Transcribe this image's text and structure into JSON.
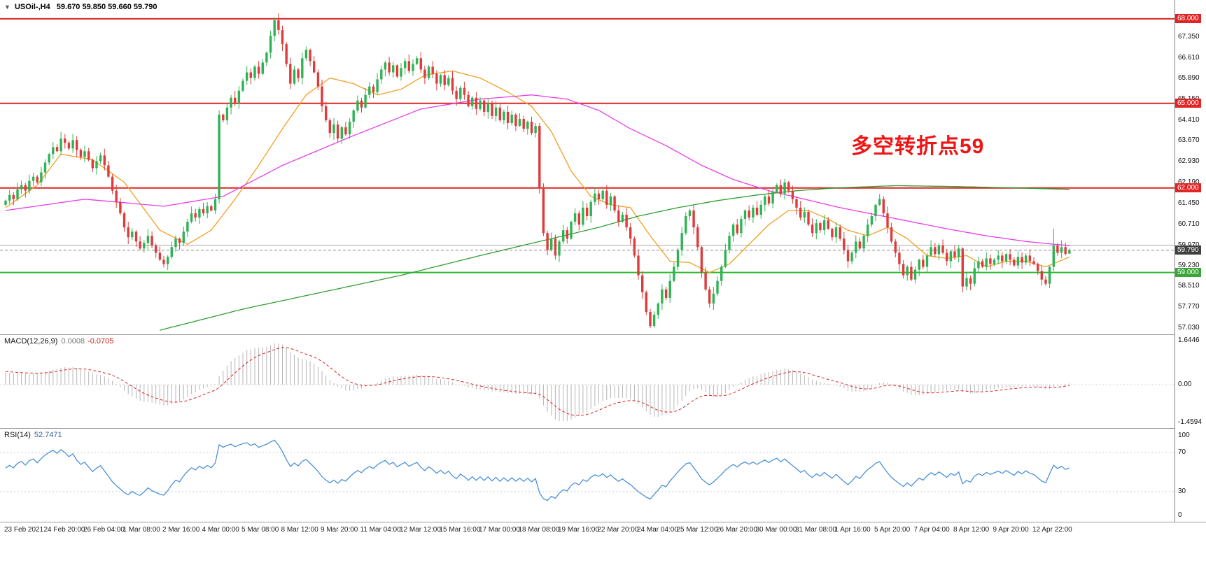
{
  "header": {
    "symbol": "USOil-,H4",
    "ohlc": "59.670 59.850 59.660 59.790",
    "collapse_icon": "▼"
  },
  "annotation": {
    "text": "多空转折点59",
    "color": "#f01414"
  },
  "axis": {
    "price_ticks": [
      {
        "label": "67.350",
        "value": 67.35
      },
      {
        "label": "66.610",
        "value": 66.61
      },
      {
        "label": "65.890",
        "value": 65.89
      },
      {
        "label": "65.150",
        "value": 65.15
      },
      {
        "label": "64.410",
        "value": 64.41
      },
      {
        "label": "63.670",
        "value": 63.67
      },
      {
        "label": "62.930",
        "value": 62.93
      },
      {
        "label": "62.190",
        "value": 62.19
      },
      {
        "label": "61.450",
        "value": 61.45
      },
      {
        "label": "60.710",
        "value": 60.71
      },
      {
        "label": "59.970",
        "value": 59.97
      },
      {
        "label": "59.230",
        "value": 59.23
      },
      {
        "label": "58.510",
        "value": 58.51
      },
      {
        "label": "57.770",
        "value": 57.77
      },
      {
        "label": "57.030",
        "value": 57.03
      }
    ],
    "current_price": {
      "label": "59.790",
      "value": 59.79
    }
  },
  "indicators": {
    "macd": {
      "label": "MACD(12,26,9)",
      "value_main": "0.0008",
      "value_signal": "-0.0705",
      "axis": [
        "1.6446",
        "0.00",
        "-1.4594"
      ],
      "fast": 12,
      "slow": 26,
      "signal": 9
    },
    "rsi": {
      "label": "RSI(14)",
      "value": "52.7471",
      "axis": [
        "100",
        "70",
        "30",
        "0"
      ],
      "period": 14,
      "levels": [
        70,
        30
      ]
    }
  },
  "colors": {
    "up": "#2eb353",
    "down": "#e03a3a",
    "macd_hist": "#b5b5b5",
    "macd_signal": "#dd2222",
    "rsi_line": "#4a90d8",
    "rsi_level": "#c8c8c8",
    "current_badge": "#3f3f3f",
    "current_line": "#888888",
    "axis_line": "#808080",
    "separator": "#9a9a9a"
  },
  "chart_data": {
    "type": "candlestick",
    "symbol": "USOil-",
    "timeframe": "H4",
    "title": "USOil-,H4 59.670 59.850 59.660 59.790",
    "ylim": [
      56.93,
      68.32
    ],
    "closes": [
      61.55,
      61.75,
      61.6,
      61.95,
      62.1,
      61.9,
      62.25,
      62.4,
      62.2,
      62.55,
      62.9,
      63.2,
      63.45,
      63.3,
      63.75,
      63.6,
      63.4,
      63.7,
      63.35,
      63.1,
      63.3,
      63.0,
      62.7,
      62.95,
      63.15,
      62.8,
      62.4,
      61.9,
      61.5,
      61.1,
      60.6,
      60.25,
      60.45,
      60.1,
      59.85,
      60.05,
      60.3,
      59.95,
      59.7,
      59.45,
      59.3,
      59.55,
      59.9,
      60.2,
      60.05,
      60.45,
      60.8,
      61.1,
      60.95,
      61.25,
      61.1,
      61.35,
      61.2,
      61.6,
      64.6,
      64.4,
      64.85,
      65.2,
      65.0,
      65.45,
      65.8,
      66.1,
      65.9,
      66.3,
      66.05,
      66.45,
      66.8,
      67.4,
      67.95,
      67.6,
      67.1,
      66.4,
      65.7,
      66.2,
      65.9,
      66.6,
      66.9,
      66.5,
      66.1,
      65.6,
      64.9,
      64.4,
      63.95,
      64.25,
      63.75,
      64.15,
      63.9,
      64.35,
      64.75,
      65.1,
      64.85,
      65.3,
      65.6,
      65.4,
      65.85,
      66.2,
      66.45,
      66.1,
      66.35,
      65.95,
      66.25,
      66.5,
      66.15,
      66.4,
      66.6,
      66.2,
      65.9,
      66.3,
      66.05,
      65.7,
      66.0,
      65.65,
      65.9,
      65.45,
      65.15,
      65.55,
      65.3,
      64.9,
      65.2,
      64.8,
      65.1,
      64.7,
      65.0,
      64.55,
      64.85,
      64.4,
      64.7,
      64.3,
      64.6,
      64.2,
      64.45,
      64.1,
      64.35,
      63.95,
      64.2,
      62.0,
      60.4,
      59.8,
      60.2,
      59.6,
      60.1,
      60.5,
      60.2,
      60.8,
      61.1,
      60.7,
      61.3,
      61.0,
      61.5,
      61.8,
      61.6,
      61.9,
      61.4,
      61.7,
      61.2,
      60.8,
      61.05,
      60.6,
      60.2,
      59.6,
      58.9,
      58.3,
      57.6,
      57.1,
      57.5,
      57.9,
      58.4,
      58.1,
      58.7,
      59.2,
      59.8,
      60.4,
      61.0,
      61.2,
      60.6,
      59.9,
      59.0,
      58.4,
      57.9,
      58.25,
      58.7,
      59.2,
      59.8,
      60.3,
      60.7,
      60.4,
      60.9,
      61.2,
      60.95,
      61.3,
      61.05,
      61.4,
      61.7,
      61.45,
      61.85,
      62.1,
      61.8,
      62.2,
      61.9,
      61.6,
      61.3,
      60.95,
      61.15,
      60.7,
      60.4,
      60.75,
      60.5,
      60.85,
      60.55,
      60.25,
      60.6,
      60.2,
      59.8,
      59.4,
      59.7,
      60.1,
      59.85,
      60.3,
      60.7,
      61.0,
      61.4,
      61.6,
      61.1,
      60.6,
      60.1,
      59.7,
      59.3,
      58.9,
      59.2,
      58.75,
      59.1,
      59.45,
      59.2,
      59.6,
      59.9,
      59.65,
      59.95,
      59.7,
      59.4,
      59.75,
      59.55,
      59.85,
      58.5,
      58.8,
      58.6,
      59.15,
      59.4,
      59.2,
      59.5,
      59.3,
      59.45,
      59.6,
      59.4,
      59.65,
      59.45,
      59.25,
      59.55,
      59.35,
      59.6,
      59.4,
      59.3,
      59.05,
      58.75,
      58.6,
      59.2,
      59.95,
      59.7,
      59.9,
      59.66,
      59.79
    ],
    "overrides": {
      "54": [
        61.6,
        64.75,
        61.45,
        64.6
      ],
      "68": [
        67.4,
        68.05,
        67.2,
        67.95
      ],
      "135": [
        64.2,
        64.3,
        61.8,
        62.0
      ],
      "163": [
        57.6,
        57.7,
        57.03,
        57.1
      ],
      "242": [
        59.85,
        59.9,
        58.3,
        58.5
      ],
      "265": [
        59.2,
        60.55,
        59.05,
        59.95
      ],
      "269": [
        59.67,
        59.85,
        59.66,
        59.79
      ]
    },
    "hlines": [
      {
        "price": 68.0,
        "color": "#e02525",
        "width": 2,
        "badge": "68.000",
        "badge_color": "#e02525"
      },
      {
        "price": 65.0,
        "color": "#e02525",
        "width": 2,
        "badge": "65.000",
        "badge_color": "#e02525"
      },
      {
        "price": 62.0,
        "color": "#e02525",
        "width": 2,
        "badge": "62.000",
        "badge_color": "#e02525"
      },
      {
        "price": 59.0,
        "color": "#2eb82e",
        "width": 2,
        "badge": "59.000",
        "badge_color": "#3aa63a"
      },
      {
        "price": 59.97,
        "color": "#aaaaaa",
        "width": 1,
        "badge": null,
        "badge_color": null
      }
    ],
    "current_price": {
      "price": 59.79,
      "label": "59.790"
    },
    "moving_averages": [
      {
        "name": "ma-fast-orange",
        "color": "#f0a020",
        "width": 1.3,
        "anchors": [
          [
            0,
            61.3
          ],
          [
            8,
            62.1
          ],
          [
            14,
            63.2
          ],
          [
            22,
            63.0
          ],
          [
            30,
            62.2
          ],
          [
            39,
            60.5
          ],
          [
            46,
            60.0
          ],
          [
            52,
            60.5
          ],
          [
            58,
            61.6
          ],
          [
            64,
            62.8
          ],
          [
            70,
            64.1
          ],
          [
            76,
            65.3
          ],
          [
            82,
            65.9
          ],
          [
            88,
            65.7
          ],
          [
            94,
            65.3
          ],
          [
            100,
            65.5
          ],
          [
            106,
            66.0
          ],
          [
            113,
            66.15
          ],
          [
            120,
            65.9
          ],
          [
            127,
            65.4
          ],
          [
            133,
            64.9
          ],
          [
            138,
            64.0
          ],
          [
            143,
            62.6
          ],
          [
            148,
            61.7
          ],
          [
            153,
            61.4
          ],
          [
            158,
            61.3
          ],
          [
            163,
            60.3
          ],
          [
            168,
            59.4
          ],
          [
            173,
            59.35
          ],
          [
            178,
            59.0
          ],
          [
            183,
            59.3
          ],
          [
            188,
            60.0
          ],
          [
            193,
            60.7
          ],
          [
            198,
            61.2
          ],
          [
            203,
            61.2
          ],
          [
            208,
            60.9
          ],
          [
            213,
            60.5
          ],
          [
            218,
            60.3
          ],
          [
            223,
            60.6
          ],
          [
            228,
            60.2
          ],
          [
            233,
            59.6
          ],
          [
            238,
            59.5
          ],
          [
            243,
            59.6
          ],
          [
            248,
            59.2
          ],
          [
            253,
            59.4
          ],
          [
            258,
            59.4
          ],
          [
            263,
            59.2
          ],
          [
            269,
            59.55
          ]
        ]
      },
      {
        "name": "ma-mid-magenta",
        "color": "#e83ee8",
        "width": 1.3,
        "anchors": [
          [
            0,
            61.2
          ],
          [
            20,
            61.6
          ],
          [
            40,
            61.35
          ],
          [
            55,
            61.7
          ],
          [
            70,
            62.8
          ],
          [
            87,
            63.8
          ],
          [
            105,
            64.8
          ],
          [
            120,
            65.15
          ],
          [
            133,
            65.3
          ],
          [
            142,
            65.15
          ],
          [
            150,
            64.75
          ],
          [
            158,
            64.1
          ],
          [
            167,
            63.5
          ],
          [
            176,
            62.8
          ],
          [
            184,
            62.3
          ],
          [
            193,
            61.9
          ],
          [
            202,
            61.6
          ],
          [
            211,
            61.3
          ],
          [
            220,
            61.05
          ],
          [
            229,
            60.8
          ],
          [
            238,
            60.55
          ],
          [
            248,
            60.3
          ],
          [
            258,
            60.1
          ],
          [
            269,
            59.95
          ]
        ]
      },
      {
        "name": "ma-slow-green",
        "color": "#2e9e2e",
        "width": 1.3,
        "anchors": [
          [
            39,
            56.95
          ],
          [
            60,
            57.7
          ],
          [
            80,
            58.3
          ],
          [
            100,
            58.9
          ],
          [
            120,
            59.6
          ],
          [
            135,
            60.1
          ],
          [
            150,
            60.6
          ],
          [
            160,
            61.0
          ],
          [
            170,
            61.3
          ],
          [
            180,
            61.55
          ],
          [
            190,
            61.75
          ],
          [
            200,
            61.9
          ],
          [
            210,
            62.0
          ],
          [
            225,
            62.08
          ],
          [
            240,
            62.05
          ],
          [
            255,
            62.0
          ],
          [
            269,
            61.95
          ]
        ]
      }
    ],
    "x_labels": [
      "23 Feb 2021",
      "24 Feb 20:00",
      "26 Feb 04:00",
      "1 Mar 08:00",
      "2 Mar 16:00",
      "4 Mar 00:00",
      "5 Mar 08:00",
      "8 Mar 12:00",
      "9 Mar 20:00",
      "11 Mar 04:00",
      "12 Mar 12:00",
      "15 Mar 16:00",
      "17 Mar 00:00",
      "18 Mar 08:00",
      "19 Mar 16:00",
      "22 Mar 20:00",
      "24 Mar 04:00",
      "25 Mar 12:00",
      "26 Mar 20:00",
      "30 Mar 00:00",
      "31 Mar 08:00",
      "1 Apr 16:00",
      "5 Apr 20:00",
      "7 Apr 04:00",
      "8 Apr 12:00",
      "9 Apr 20:00",
      "12 Apr 22:00"
    ]
  }
}
